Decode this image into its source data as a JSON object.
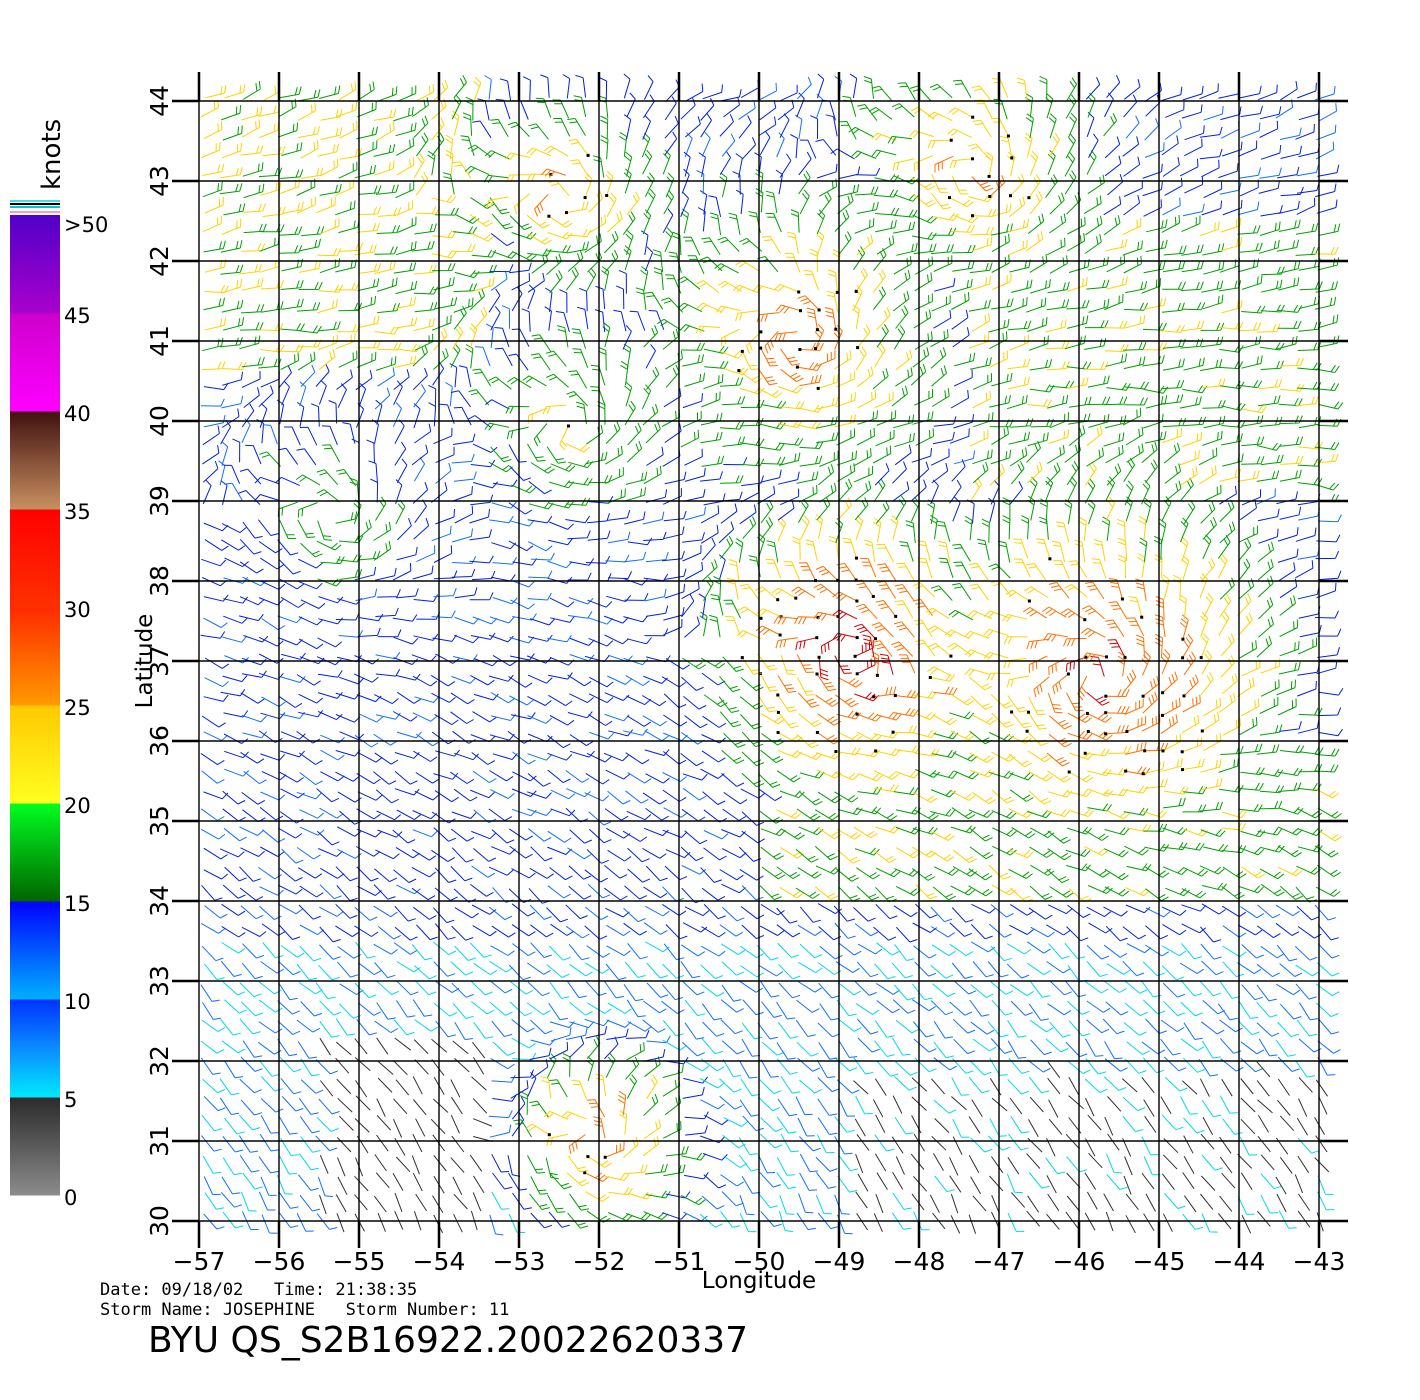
{
  "colorbar": {
    "unit_label": "knots",
    "bands": [
      {
        "range": [
          0,
          5
        ],
        "color_top": "#2a2a2a",
        "color_bottom": "#8c8c8c"
      },
      {
        "range": [
          5,
          10
        ],
        "color_top": "#00e8ff",
        "color_bottom": "#00e8ff",
        "color_mid": "#0a8cff",
        "color_top2": "#0032ff"
      },
      {
        "range": [
          10,
          15
        ],
        "color_top": "#0000ff",
        "color_bottom": "#00b0ff"
      },
      {
        "range": [
          15,
          20
        ],
        "color_top": "#00ff20",
        "color_bottom": "#006400"
      },
      {
        "range": [
          20,
          25
        ],
        "color_top": "#ffc800",
        "color_bottom": "#ffff20"
      },
      {
        "range": [
          25,
          30
        ],
        "color_top": "#ff2a00",
        "color_bottom": "#ff9a00"
      },
      {
        "range": [
          30,
          35
        ],
        "color_top": "#ff0000",
        "color_bottom": "#ff3000"
      },
      {
        "range": [
          35,
          40
        ],
        "color_top": "#401010",
        "color_bottom": "#c89060"
      },
      {
        "range": [
          40,
          45
        ],
        "color_top": "#cc00cc",
        "color_bottom": "#ff00ff"
      },
      {
        "range": [
          45,
          50
        ],
        "color_top": "#5000c8",
        "color_bottom": "#aa00cc"
      }
    ],
    "tick_labels": [
      "0",
      "5",
      "10",
      "15",
      "20",
      "25",
      "30",
      "35",
      "40",
      "45",
      ">50"
    ]
  },
  "map": {
    "lon_range": [
      -57,
      -43
    ],
    "lat_range": [
      30,
      44
    ],
    "lon_ticks": [
      "−57",
      "−56",
      "−55",
      "−54",
      "−53",
      "−52",
      "−51",
      "−50",
      "−49",
      "−48",
      "−47",
      "−46",
      "−45",
      "−44",
      "−43"
    ],
    "lat_ticks": [
      "30",
      "31",
      "32",
      "33",
      "34",
      "35",
      "36",
      "37",
      "38",
      "39",
      "40",
      "41",
      "42",
      "43",
      "44"
    ],
    "xlabel": "Longitude",
    "ylabel": "Latitude",
    "speed_colors": {
      "calm": "#303030",
      "light": "#00d8f0",
      "moderate": "#1070ff",
      "fresh": "#0020e0",
      "strong": "#00a000",
      "gale": "#ffd200",
      "high": "#ff7000",
      "storm": "#d00000",
      "extreme": "#c000c0"
    }
  },
  "footer": {
    "date_line": "Date: 09/18/02   Time: 21:38:35",
    "storm_line": "Storm Name: JOSEPHINE   Storm Number: 11",
    "product_id": "BYU  QS_S2B16922.20022620337"
  }
}
